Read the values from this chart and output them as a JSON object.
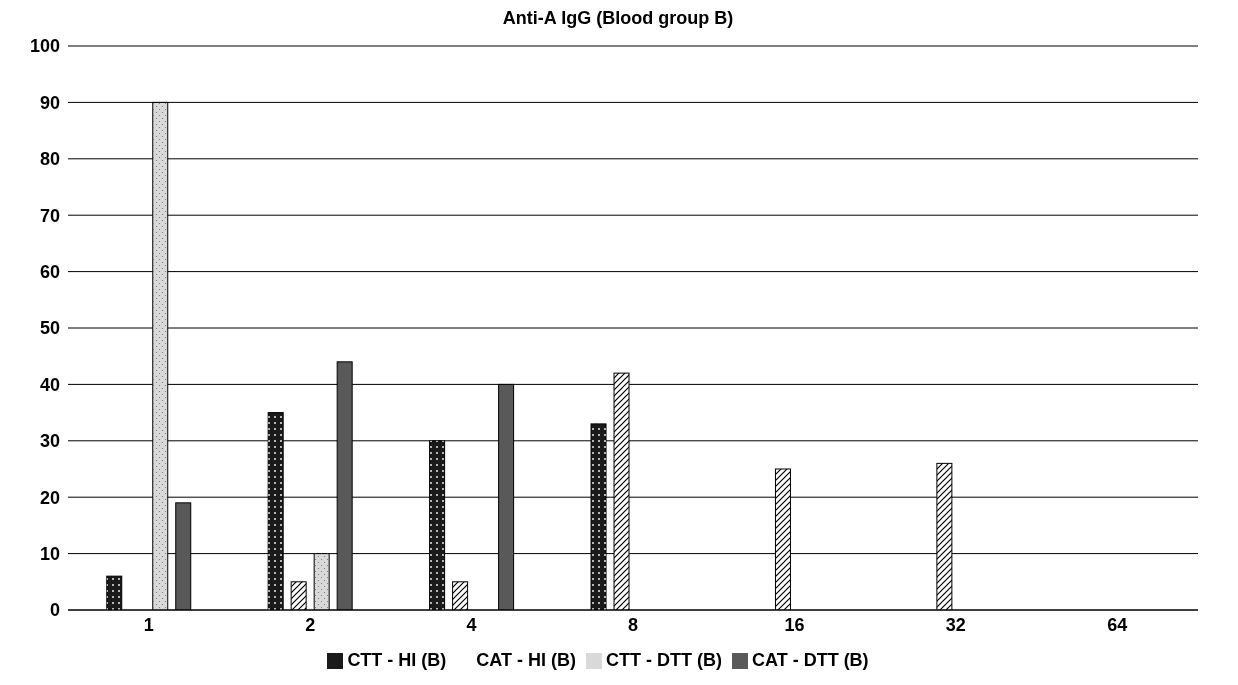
{
  "chart_data": {
    "type": "bar",
    "title": "Anti-A IgG (Blood group B)",
    "categories": [
      "1",
      "2",
      "4",
      "8",
      "16",
      "32",
      "64"
    ],
    "series": [
      {
        "name": "CTT - HI (B)",
        "color": "#1a1a1a",
        "values": [
          6,
          35,
          30,
          33,
          0,
          0,
          0
        ]
      },
      {
        "name": "CAT - HI (B)",
        "color": "#ffffff",
        "values": [
          0,
          5,
          5,
          42,
          25,
          26,
          0
        ]
      },
      {
        "name": "CTT - DTT (B)",
        "color": "#d9d9d9",
        "values": [
          90,
          10,
          0,
          0,
          0,
          0,
          0
        ]
      },
      {
        "name": "CAT - DTT (B)",
        "color": "#595959",
        "values": [
          19,
          44,
          40,
          0,
          0,
          0,
          0
        ]
      }
    ],
    "ylim": [
      0,
      100
    ],
    "yticks": [
      0,
      10,
      20,
      30,
      40,
      50,
      60,
      70,
      80,
      90,
      100
    ],
    "grid": "y",
    "legend": "bottom"
  }
}
